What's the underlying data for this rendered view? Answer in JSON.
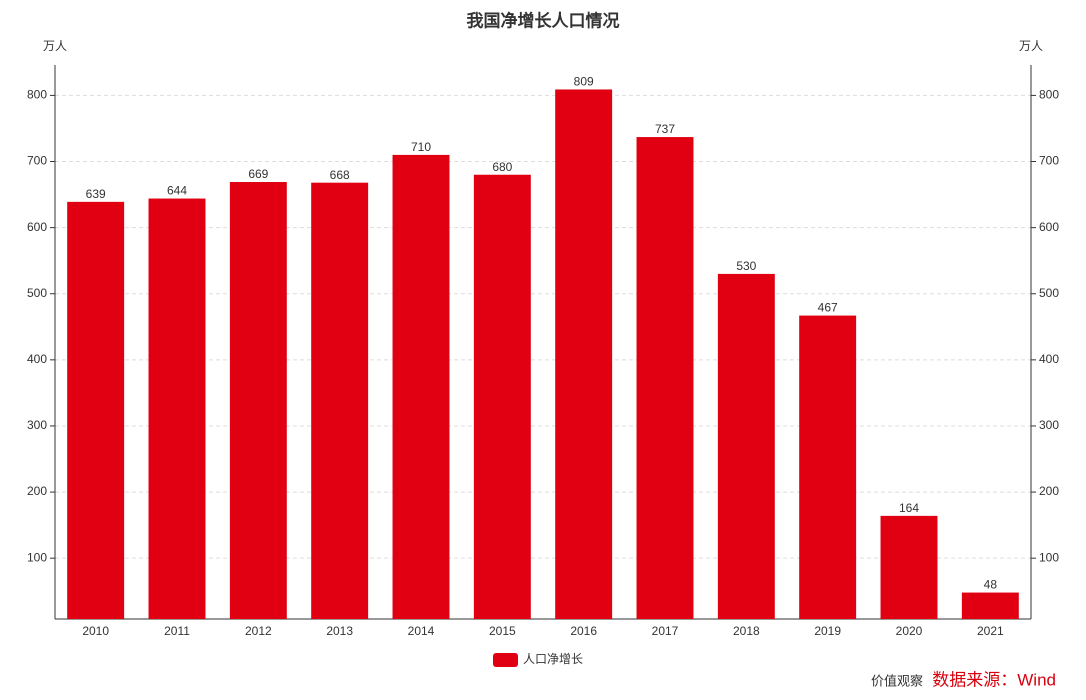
{
  "chart_data": {
    "type": "bar",
    "title": "我国净增长人口情况",
    "y_axis_label": "万人",
    "y2_axis_label": "万人",
    "categories": [
      "2010",
      "2011",
      "2012",
      "2013",
      "2014",
      "2015",
      "2016",
      "2017",
      "2018",
      "2019",
      "2020",
      "2021"
    ],
    "series": [
      {
        "name": "人口净增长",
        "color": "#e00012",
        "values": [
          639,
          644,
          669,
          668,
          710,
          680,
          809,
          737,
          530,
          467,
          164,
          48
        ]
      }
    ],
    "ylim": [
      8,
      846
    ],
    "yticks": [
      100,
      200,
      300,
      400,
      500,
      600,
      700,
      800
    ],
    "y2lim": [
      8,
      846
    ],
    "y2ticks": [
      100,
      200,
      300,
      400,
      500,
      600,
      700,
      800
    ],
    "grid": true,
    "legend": "bottom",
    "watermark": "价值观察",
    "source": "数据来源：Wind"
  }
}
